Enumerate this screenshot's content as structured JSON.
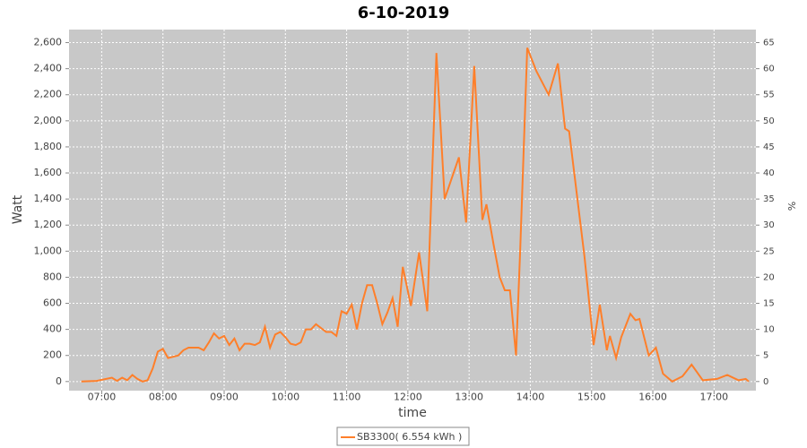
{
  "chart_data": {
    "type": "line",
    "title": "6-10-2019",
    "xlabel": "time",
    "ylabel": "Watt",
    "y2label": "%",
    "x": [
      "06:40",
      "06:55",
      "07:10",
      "07:15",
      "07:20",
      "07:25",
      "07:30",
      "07:35",
      "07:40",
      "07:45",
      "07:50",
      "07:55",
      "08:00",
      "08:05",
      "08:10",
      "08:15",
      "08:20",
      "08:25",
      "08:30",
      "08:35",
      "08:40",
      "08:45",
      "08:50",
      "08:55",
      "09:00",
      "09:05",
      "09:10",
      "09:15",
      "09:20",
      "09:25",
      "09:30",
      "09:35",
      "09:40",
      "09:45",
      "09:50",
      "09:55",
      "10:00",
      "10:05",
      "10:10",
      "10:15",
      "10:20",
      "10:25",
      "10:30",
      "10:35",
      "10:40",
      "10:45",
      "10:50",
      "10:55",
      "11:00",
      "11:05",
      "11:10",
      "11:15",
      "11:20",
      "11:25",
      "11:30",
      "11:35",
      "11:40",
      "11:45",
      "11:50",
      "11:55",
      "12:03",
      "12:11",
      "12:19",
      "12:28",
      "12:36",
      "12:43",
      "12:50",
      "12:57",
      "13:05",
      "13:13",
      "13:17",
      "13:24",
      "13:30",
      "13:35",
      "13:40",
      "13:46",
      "13:50",
      "13:57",
      "14:06",
      "14:18",
      "14:27",
      "14:34",
      "14:38",
      "14:53",
      "15:02",
      "15:08",
      "15:15",
      "15:18",
      "15:24",
      "15:29",
      "15:38",
      "15:43",
      "15:47",
      "15:56",
      "16:03",
      "16:10",
      "16:19",
      "16:29",
      "16:38",
      "16:49",
      "17:03",
      "17:13",
      "17:24",
      "17:31",
      "17:34"
    ],
    "series": [
      {
        "name": "SB3300( 6.554 kWh )",
        "color": "#ff7f2a",
        "values": [
          0,
          5,
          30,
          5,
          30,
          10,
          50,
          20,
          0,
          10,
          100,
          230,
          250,
          180,
          190,
          200,
          240,
          260,
          260,
          260,
          240,
          300,
          370,
          330,
          350,
          280,
          330,
          240,
          290,
          290,
          280,
          300,
          420,
          260,
          360,
          380,
          340,
          290,
          280,
          300,
          400,
          400,
          440,
          410,
          380,
          380,
          350,
          540,
          520,
          590,
          400,
          600,
          740,
          740,
          600,
          440,
          530,
          640,
          420,
          880,
          580,
          990,
          540,
          2520,
          1400,
          1560,
          1720,
          1220,
          2420,
          1240,
          1360,
          1050,
          800,
          700,
          700,
          200,
          1000,
          2560,
          2380,
          2200,
          2440,
          1940,
          1920,
          960,
          280,
          590,
          240,
          350,
          180,
          340,
          520,
          470,
          480,
          200,
          260,
          60,
          0,
          40,
          130,
          10,
          20,
          50,
          10,
          20,
          0
        ]
      }
    ],
    "xlim": [
      "06:28",
      "17:41"
    ],
    "xticks": [
      "07:00",
      "08:00",
      "09:00",
      "10:00",
      "11:00",
      "12:00",
      "13:00",
      "14:00",
      "15:00",
      "16:00",
      "17:00"
    ],
    "ylim": [
      -70,
      2700
    ],
    "yticks": [
      0,
      200,
      400,
      600,
      800,
      {
        "value": 1000,
        "label": "1,000"
      },
      {
        "value": 1200,
        "label": "1,200"
      },
      {
        "value": 1400,
        "label": "1,400"
      },
      {
        "value": 1600,
        "label": "1,600"
      },
      {
        "value": 1800,
        "label": "1,800"
      },
      {
        "value": 2000,
        "label": "2,000"
      },
      {
        "value": 2200,
        "label": "2,200"
      },
      {
        "value": 2400,
        "label": "2,400"
      },
      {
        "value": 2600,
        "label": "2,600"
      }
    ],
    "y2lim": [
      -1.75,
      67.5
    ],
    "y2ticks": [
      0,
      5,
      10,
      15,
      20,
      25,
      30,
      35,
      40,
      45,
      50,
      55,
      60,
      65
    ],
    "grid": true,
    "legend": "bottom"
  }
}
